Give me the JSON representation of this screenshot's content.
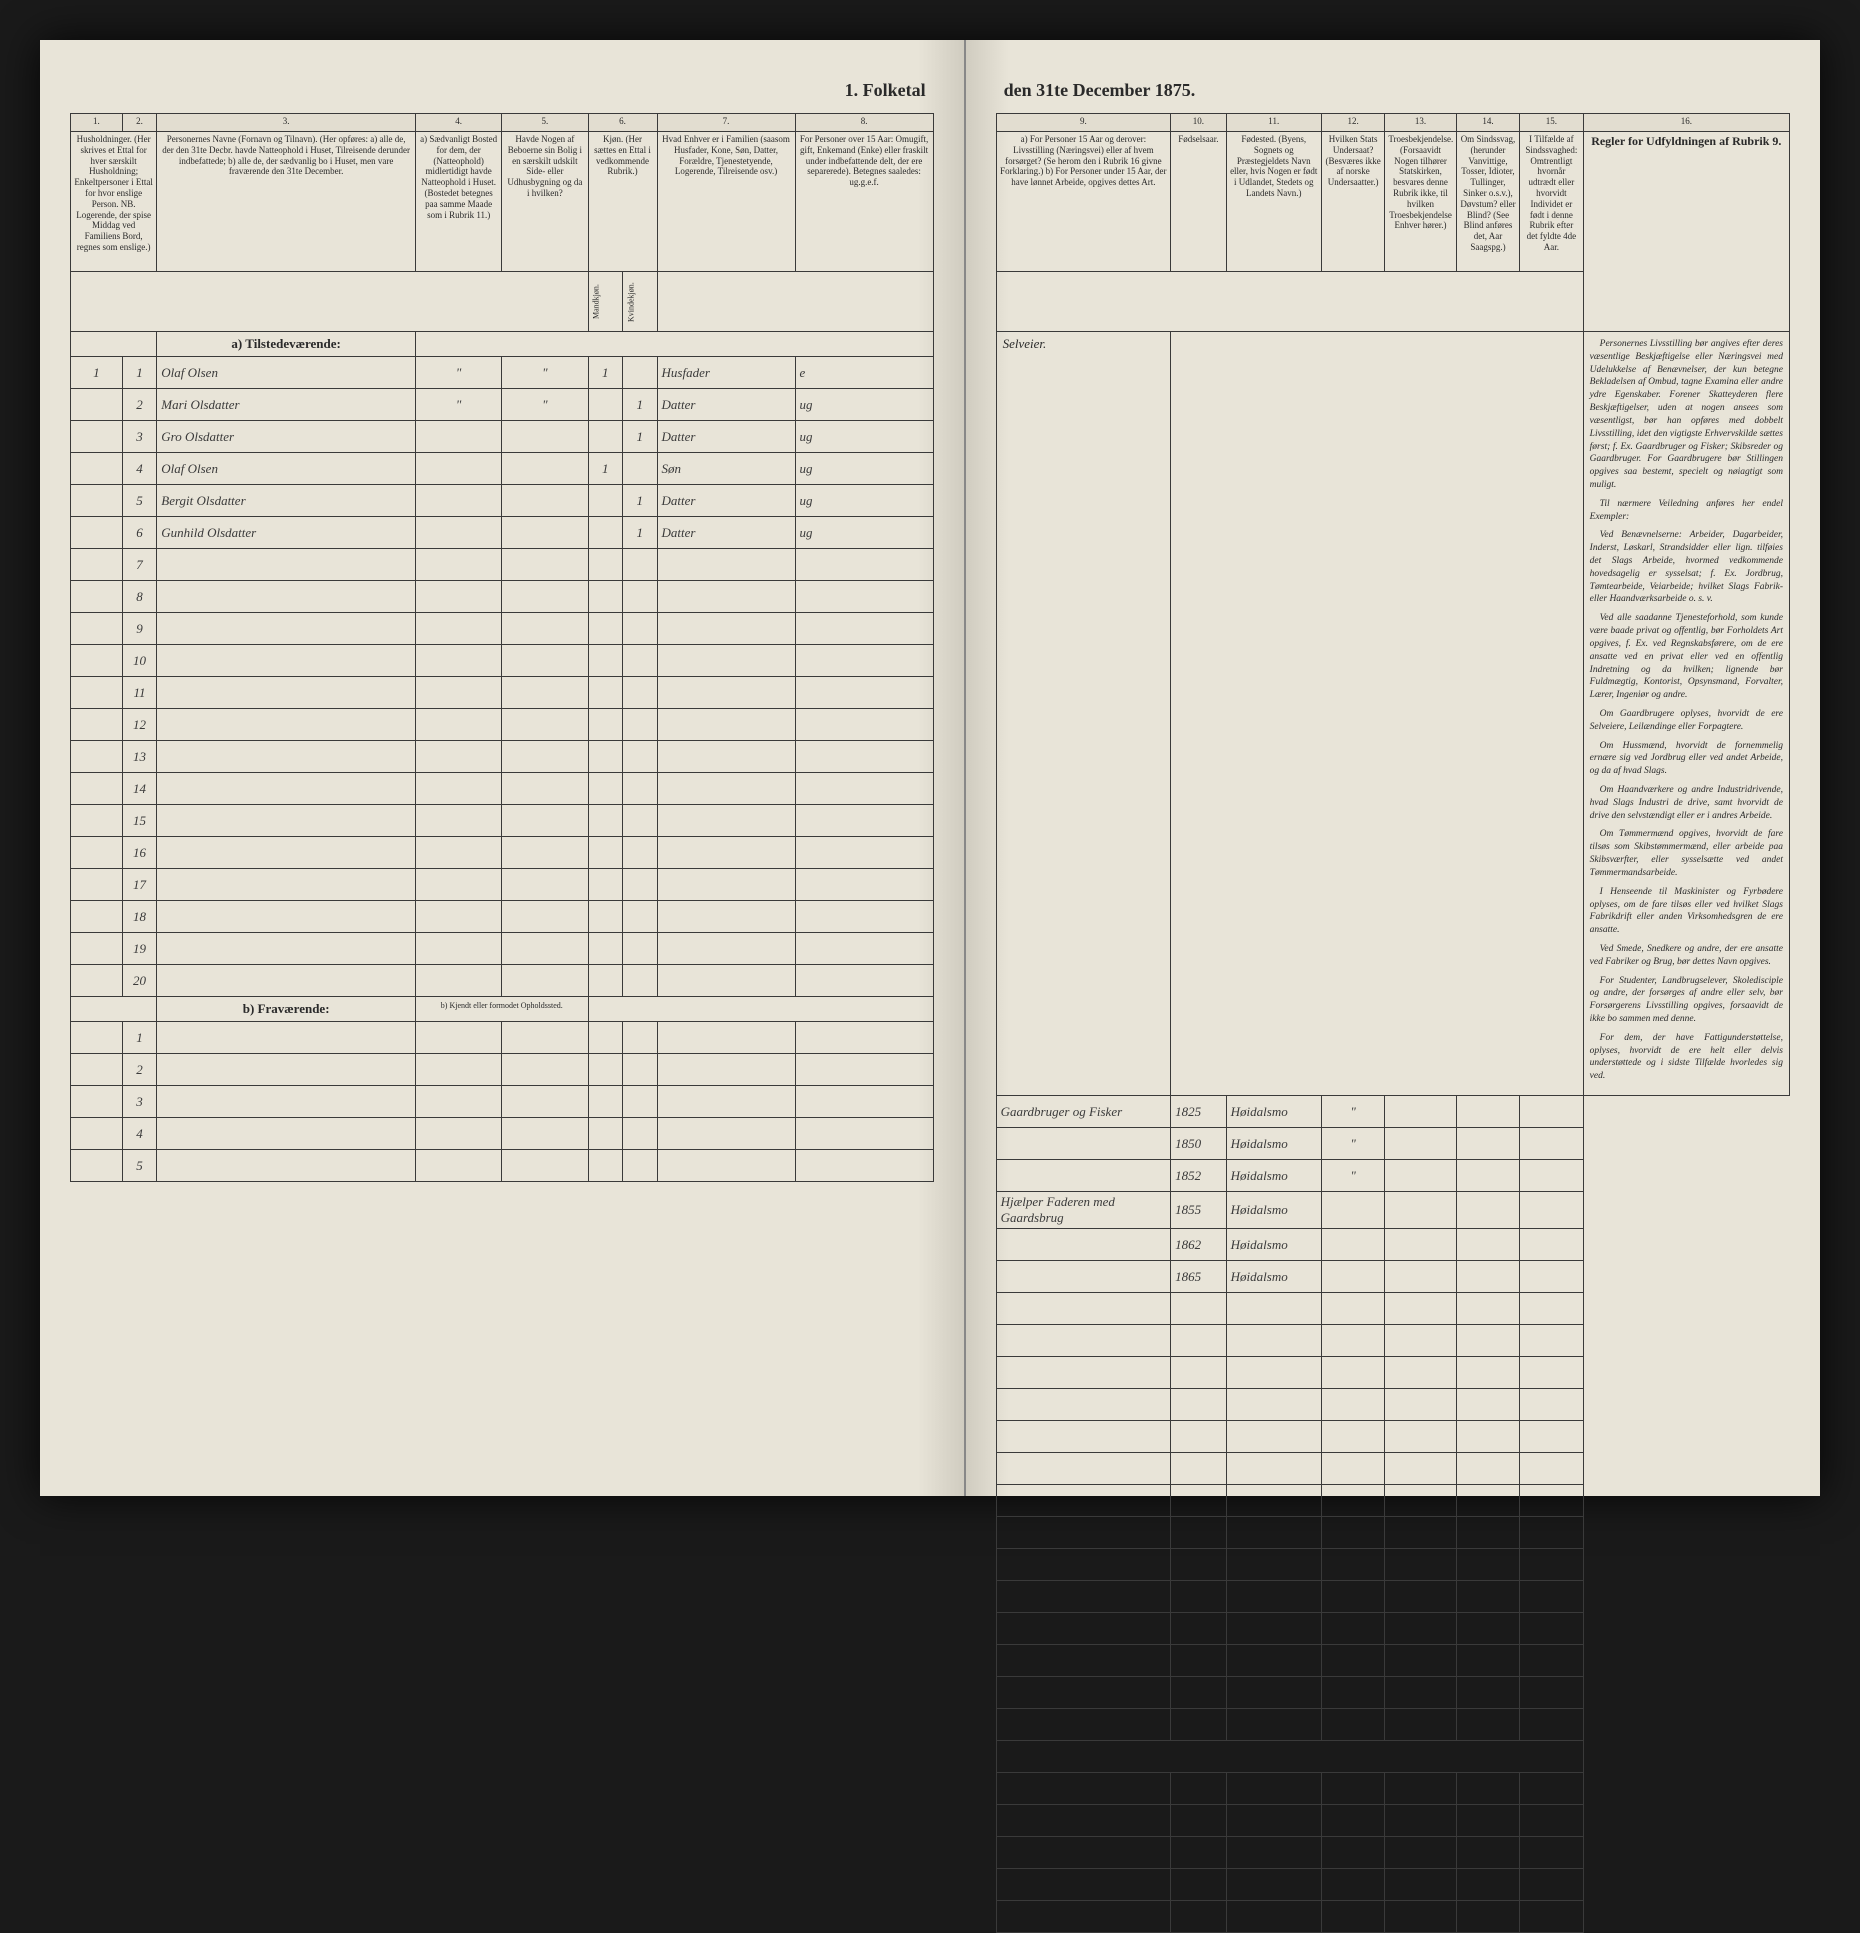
{
  "title_left": "1. Folketal",
  "title_right": "den 31te December 1875.",
  "columns_left": {
    "c1": "1.",
    "c2": "2.",
    "c3": "3.",
    "c4": "4.",
    "c5": "5.",
    "c6": "6.",
    "c7": "7.",
    "c8": "8."
  },
  "columns_right": {
    "c9": "9.",
    "c10": "10.",
    "c11": "11.",
    "c12": "12.",
    "c13": "13.",
    "c14": "14.",
    "c15": "15.",
    "c16": "16."
  },
  "headers_left": {
    "h1": "Husholdninger.\n(Her skrives et Ettal for hver særskilt Husholdning; Enkeltpersoner i Ettal for hvor enslige Person.\nNB. Logerende, der spise Middag ved Familiens Bord, regnes som enslige.)",
    "h3": "Personernes Navne (Fornavn og Tilnavn).\n(Her opføres:\na) alle de, der den 31te Decbr. havde Natteophold i Huset, Tilreisende derunder indbefattede;\nb) alle de, der sædvanlig bo i Huset, men vare fraværende den 31te December.",
    "h4": "a) Sædvanligt Bosted for dem, der (Natteophold) midlertidigt havde Natteophold i Huset.\n(Bostedet betegnes paa samme Maade som i Rubrik 11.)",
    "h5": "Havde Nogen af Beboerne sin Bolig i en særskilt udskilt Side- eller Udhusbygning og da i hvilken?",
    "h6": "Kjøn.\n(Her sættes en Ettal i vedkommende Rubrik.)",
    "h6a": "Mandkjøn.",
    "h6b": "Kvindekjøn.",
    "h7": "Hvad Enhver er i Familien\n(saasom Husfader, Kone, Søn, Datter, Forældre, Tjenestetyende, Logerende, Tilreisende osv.)",
    "h8": "For Personer over 15 Aar: Omugift, gift, Enkemand (Enke) eller fraskilt under indbefattende delt, der ere separerede).\nBetegnes saaledes:\nug.g.e.f."
  },
  "headers_right": {
    "h9": "a) For Personer 15 Aar og derover: Livsstilling (Næringsvei) eller af hvem forsørget? (Se herom den i Rubrik 16 givne Forklaring.)\nb) For Personer under 15 Aar, der have lønnet Arbeide, opgives dettes Art.",
    "h10": "Fødselsaar.",
    "h11": "Fødested.\n(Byens, Sognets og Præstegjeldets Navn eller, hvis Nogen er født i Udlandet, Stedets og Landets Navn.)",
    "h12": "Hvilken Stats Undersaat?\n(Besværes ikke af norske Undersaatter.)",
    "h13": "Troesbekjendelse.\n(Forsaavidt Nogen tilhører Statskirken, besvares denne Rubrik ikke, til hvilken Troesbekjendelse Enhver hører.)",
    "h14": "Om Sindssvag, (herunder Vanvittige, Tosser, Idioter, Tullinger, Sinker o.s.v.), Døvstum? eller Blind?\n(See Blind anføres det, Aar Saagspg.)",
    "h15": "I Tilfælde af Sindssvaghed: Omtrentligt hvornår udtrædt eller hvorvidt Individet er født i denne Rubrik efter det fyldte 4de Aar.",
    "h16": "Regler for Udfyldningen\naf\nRubrik 9."
  },
  "section_a": "a) Tilstedeværende:",
  "section_b_left": "b) Fraværende:",
  "section_b_right": "b) Kjendt eller formodet Opholdssted.",
  "rows": [
    {
      "n1": "1",
      "n2": "1",
      "name": "Olaf Olsen",
      "c4": "\"",
      "c5": "\"",
      "mk": "1",
      "kk": "",
      "fam": "Husfader",
      "civ": "e",
      "liv": "Gaardbruger og Fisker",
      "aar": "1825",
      "sted": "Høidalsmo",
      "und": "\"",
      "tro": "",
      "sind": "",
      "blind": ""
    },
    {
      "n1": "",
      "n2": "2",
      "name": "Mari Olsdatter",
      "c4": "\"",
      "c5": "\"",
      "mk": "",
      "kk": "1",
      "fam": "Datter",
      "civ": "ug",
      "liv": "",
      "aar": "1850",
      "sted": "Høidalsmo",
      "und": "\"",
      "tro": "",
      "sind": "",
      "blind": ""
    },
    {
      "n1": "",
      "n2": "3",
      "name": "Gro Olsdatter",
      "c4": "",
      "c5": "",
      "mk": "",
      "kk": "1",
      "fam": "Datter",
      "civ": "ug",
      "liv": "",
      "aar": "1852",
      "sted": "Høidalsmo",
      "und": "\"",
      "tro": "",
      "sind": "",
      "blind": ""
    },
    {
      "n1": "",
      "n2": "4",
      "name": "Olaf Olsen",
      "c4": "",
      "c5": "",
      "mk": "1",
      "kk": "",
      "fam": "Søn",
      "civ": "ug",
      "liv": "Hjælper Faderen med Gaardsbrug",
      "aar": "1855",
      "sted": "Høidalsmo",
      "und": "",
      "tro": "",
      "sind": "",
      "blind": ""
    },
    {
      "n1": "",
      "n2": "5",
      "name": "Bergit Olsdatter",
      "c4": "",
      "c5": "",
      "mk": "",
      "kk": "1",
      "fam": "Datter",
      "civ": "ug",
      "liv": "",
      "aar": "1862",
      "sted": "Høidalsmo",
      "und": "",
      "tro": "",
      "sind": "",
      "blind": ""
    },
    {
      "n1": "",
      "n2": "6",
      "name": "Gunhild Olsdatter",
      "c4": "",
      "c5": "",
      "mk": "",
      "kk": "1",
      "fam": "Datter",
      "civ": "ug",
      "liv": "",
      "aar": "1865",
      "sted": "Høidalsmo",
      "und": "",
      "tro": "",
      "sind": "",
      "blind": ""
    }
  ],
  "top_note": "Selveier.",
  "empty_rows_a": [
    "7",
    "8",
    "9",
    "10",
    "11",
    "12",
    "13",
    "14",
    "15",
    "16",
    "17",
    "18",
    "19",
    "20"
  ],
  "empty_rows_b": [
    "1",
    "2",
    "3",
    "4",
    "5"
  ],
  "instructions": {
    "p1": "Personernes Livsstilling bør angives efter deres væsentlige Beskjæftigelse eller Næringsvei med Udelukkelse af Benævnelser, der kun betegne Bekladelsen af Ombud, tagne Examina eller andre ydre Egenskaber. Forener Skatteyderen flere Beskjæftigelser, uden at nogen ansees som væsentligst, bør han opføres med dobbelt Livsstilling, idet den vigtigste Erhvervskilde sættes først; f. Ex. Gaardbruger og Fisker; Skibsreder og Gaardbruger. For Gaardbrugere bør Stillingen opgives saa bestemt, specielt og nøiagtigt som muligt.",
    "p2": "Til nærmere Veiledning anføres her endel Exempler:",
    "p3": "Ved Benævnelserne: Arbeider, Dagarbeider, Inderst, Løskarl, Strandsidder eller lign. tilføies det Slags Arbeide, hvormed vedkommende hovedsagelig er sysselsat; f. Ex. Jordbrug, Tømtearbeide, Veiarbeide; hvilket Slags Fabrik- eller Haandværksarbeide o. s. v.",
    "p4": "Ved alle saadanne Tjenesteforhold, som kunde være baade privat og offentlig, bør Forholdets Art opgives, f. Ex. ved Regnskabsførere, om de ere ansatte ved en privat eller ved en offentlig Indretning og da hvilken; lignende bør Fuldmægtig, Kontorist, Opsynsmand, Forvalter, Lærer, Ingeniør og andre.",
    "p5": "Om Gaardbrugere oplyses, hvorvidt de ere Selveiere, Leilændinge eller Forpagtere.",
    "p6": "Om Hussmænd, hvorvidt de fornemmelig ernære sig ved Jordbrug eller ved andet Arbeide, og da af hvad Slags.",
    "p7": "Om Haandværkere og andre Industridrivende, hvad Slags Industri de drive, samt hvorvidt de drive den selvstændigt eller er i andres Arbeide.",
    "p8": "Om Tømmermænd opgives, hvorvidt de fare tilsøs som Skibstømmermænd, eller arbeide paa Skibsværfter, eller sysselsætte ved andet Tømmermandsarbeide.",
    "p9": "I Henseende til Maskinister og Fyrbødere oplyses, om de fare tilsøs eller ved hvilket Slags Fabrikdrift eller anden Virksomhedsgren de ere ansatte.",
    "p10": "Ved Smede, Snedkere og andre, der ere ansatte ved Fabriker og Brug, bør dettes Navn opgives.",
    "p11": "For Studenter, Landbrugselever, Skoledisciple og andre, der forsørges af andre eller selv, bør Forsørgerens Livsstilling opgives, forsaavidt de ikke bo sammen med denne.",
    "p12": "For dem, der have Fattigunderstøttelse, oplyses, hvorvidt de ere helt eller delvis understøttede og i sidste Tilfælde hvorledes sig ved."
  }
}
